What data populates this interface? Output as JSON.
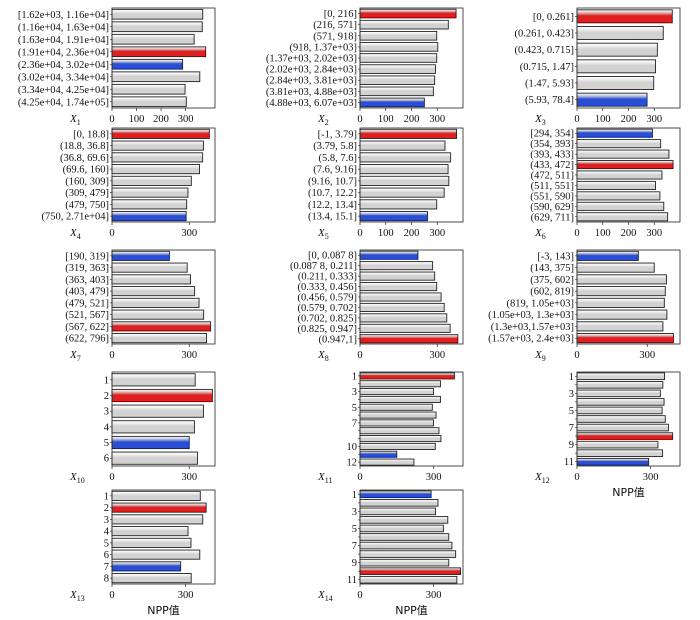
{
  "colors": {
    "highest": "#e02020",
    "lowest": "#2a4fd6",
    "normal": "#d2d2d2",
    "stroke": "#222222"
  },
  "chart_data": [
    {
      "type": "bar",
      "label": "X",
      "sub": "1",
      "categories": [
        "[1.62e+03, 1.16e+04]",
        "(1.16e+04, 1.63e+04]",
        "(1.63e+04, 1.91e+04]",
        "(1.91e+04, 2.36e+04]",
        "(2.36e+04, 3.02e+04]",
        "(3.02e+04, 3.34e+04]",
        "(3.34e+04, 4.25e+04]",
        "(4.25e+04, 1.74e+05]"
      ],
      "values": [
        370,
        368,
        335,
        382,
        288,
        358,
        298,
        303
      ],
      "highlight": [
        "normal",
        "normal",
        "normal",
        "highest",
        "lowest",
        "normal",
        "normal",
        "normal"
      ],
      "xticks": [
        0,
        100,
        200,
        300
      ],
      "xlim": [
        0,
        420
      ],
      "xlabel": ""
    },
    {
      "type": "bar",
      "label": "X",
      "sub": "2",
      "categories": [
        "[0, 216]",
        "(216, 571]",
        "(571, 918]",
        "(918, 1.37e+03]",
        "(1.37e+03, 2.02e+03]",
        "(2.02e+03, 2.84e+03]",
        "(2.84e+03, 3.81e+03]",
        "(3.81e+03, 4.88e+03]",
        "(4.88e+03, 6.07e+03]"
      ],
      "values": [
        373,
        343,
        298,
        302,
        298,
        293,
        290,
        285,
        250
      ],
      "highlight": [
        "highest",
        "normal",
        "normal",
        "normal",
        "normal",
        "normal",
        "normal",
        "normal",
        "lowest"
      ],
      "xticks": [
        0,
        100,
        200,
        300
      ],
      "xlim": [
        0,
        400
      ],
      "xlabel": ""
    },
    {
      "type": "bar",
      "label": "X",
      "sub": "3",
      "categories": [
        "[0, 0.261]",
        "(0.261, 0.423]",
        "(0.423, 0.715]",
        "(0.715, 1.47]",
        "(1.47, 5.93]",
        "(5.93, 78.4]"
      ],
      "values": [
        370,
        335,
        312,
        305,
        298,
        272
      ],
      "highlight": [
        "highest",
        "normal",
        "normal",
        "normal",
        "normal",
        "lowest"
      ],
      "xticks": [
        0,
        100,
        200,
        300
      ],
      "xlim": [
        0,
        400
      ],
      "xlabel": ""
    },
    {
      "type": "bar",
      "label": "X",
      "sub": "4",
      "categories": [
        "[0, 18.8]",
        "(18.8, 36.8]",
        "(36.8, 69.6]",
        "(69.6, 160]",
        "(160, 309]",
        "(309, 479]",
        "(479, 750]",
        "(750, 2.71e+04]"
      ],
      "values": [
        378,
        355,
        352,
        340,
        308,
        295,
        290,
        288
      ],
      "highlight": [
        "highest",
        "normal",
        "normal",
        "normal",
        "normal",
        "normal",
        "normal",
        "lowest"
      ],
      "xticks": [
        0,
        300
      ],
      "xlim": [
        0,
        400
      ],
      "xlabel": ""
    },
    {
      "type": "bar",
      "label": "X",
      "sub": "5",
      "categories": [
        "[-1, 3.79]",
        "(3.79, 5.8]",
        "(5.8, 7.6]",
        "(7.6, 9.16]",
        "(9.16, 10.7]",
        "(10.7, 12.2]",
        "(12.2, 13.4]",
        "(13.4, 15.1]"
      ],
      "values": [
        375,
        330,
        352,
        342,
        345,
        327,
        298,
        262
      ],
      "highlight": [
        "highest",
        "normal",
        "normal",
        "normal",
        "normal",
        "normal",
        "normal",
        "lowest"
      ],
      "xticks": [
        0,
        100,
        200,
        300
      ],
      "xlim": [
        0,
        400
      ],
      "xlabel": ""
    },
    {
      "type": "bar",
      "label": "X",
      "sub": "6",
      "categories": [
        "[294, 354]",
        "(354, 393]",
        "(393, 433]",
        "(433, 472]",
        "(472, 511]",
        "(511, 551]",
        "(551, 590]",
        "(590, 629]",
        "(629, 711]"
      ],
      "values": [
        293,
        325,
        357,
        373,
        330,
        305,
        322,
        337,
        352
      ],
      "highlight": [
        "lowest",
        "normal",
        "normal",
        "highest",
        "normal",
        "normal",
        "normal",
        "normal",
        "normal"
      ],
      "xticks": [
        0,
        100,
        200,
        300
      ],
      "xlim": [
        0,
        400
      ],
      "xlabel": ""
    },
    {
      "type": "bar",
      "label": "X",
      "sub": "7",
      "categories": [
        "[190, 319]",
        "(319, 363]",
        "(363, 403]",
        "(403, 479]",
        "(479, 521]",
        "(521, 567]",
        "(567, 622]",
        "(622, 796]"
      ],
      "values": [
        223,
        292,
        305,
        321,
        338,
        356,
        383,
        367
      ],
      "highlight": [
        "lowest",
        "normal",
        "normal",
        "normal",
        "normal",
        "normal",
        "highest",
        "normal"
      ],
      "xticks": [
        0,
        300
      ],
      "xlim": [
        0,
        400
      ],
      "xlabel": ""
    },
    {
      "type": "bar",
      "label": "X",
      "sub": "8",
      "categories": [
        "[0, 0.087 8]",
        "(0.087 8, 0.211]",
        "(0.211, 0.333]",
        "(0.333, 0.456]",
        "(0.456, 0.579]",
        "(0.579, 0.702]",
        "(0.702, 0.825]",
        "(0.825, 0.947]",
        "(0.947,1]"
      ],
      "values": [
        225,
        282,
        290,
        298,
        315,
        327,
        337,
        350,
        380
      ],
      "highlight": [
        "lowest",
        "normal",
        "normal",
        "normal",
        "normal",
        "normal",
        "normal",
        "normal",
        "highest"
      ],
      "xticks": [
        0,
        300
      ],
      "xlim": [
        0,
        400
      ],
      "xlabel": ""
    },
    {
      "type": "bar",
      "label": "X",
      "sub": "9",
      "categories": [
        "[-3, 143]",
        "(143, 375]",
        "(375, 602]",
        "(602, 819]",
        "(819, 1.05e+03]",
        "(1.05e+03, 1.3e+03]",
        "(1.3e+03,1.57e+03]",
        "(1.57e+03, 2.4e+03]"
      ],
      "values": [
        262,
        330,
        382,
        377,
        373,
        384,
        367,
        412
      ],
      "highlight": [
        "lowest",
        "normal",
        "normal",
        "normal",
        "normal",
        "normal",
        "normal",
        "highest"
      ],
      "xticks": [
        0,
        300
      ],
      "xlim": [
        0,
        440
      ],
      "xlabel": ""
    },
    {
      "type": "bar",
      "label": "X",
      "sub": "10",
      "categories": [
        "1",
        "2",
        "3",
        "4",
        "5",
        "6"
      ],
      "values": [
        323,
        390,
        355,
        320,
        300,
        332
      ],
      "highlight": [
        "normal",
        "highest",
        "normal",
        "normal",
        "lowest",
        "normal"
      ],
      "xticks": [
        0,
        300
      ],
      "xlim": [
        0,
        400
      ],
      "xlabel": ""
    },
    {
      "type": "bar",
      "label": "X",
      "sub": "11",
      "categories": [
        "1",
        "2",
        "3",
        "4",
        "5",
        "6",
        "7",
        "8",
        "9",
        "10",
        "11",
        "12"
      ],
      "values": [
        385,
        328,
        300,
        328,
        295,
        310,
        300,
        322,
        330,
        307,
        150,
        220
      ],
      "highlight": [
        "highest",
        "normal",
        "normal",
        "normal",
        "normal",
        "normal",
        "normal",
        "normal",
        "normal",
        "normal",
        "lowest",
        "normal"
      ],
      "tick_labels": [
        "1",
        "",
        "3",
        "",
        "5",
        "",
        "7",
        "",
        "",
        "10",
        "",
        "12"
      ],
      "xticks": [
        0,
        300
      ],
      "xlim": [
        0,
        420
      ],
      "xlabel": ""
    },
    {
      "type": "bar",
      "label": "X",
      "sub": "12",
      "categories": [
        "1",
        "2",
        "3",
        "4",
        "5",
        "6",
        "7",
        "8",
        "9",
        "10",
        "11"
      ],
      "values": [
        357,
        350,
        340,
        355,
        347,
        360,
        373,
        390,
        330,
        349,
        292
      ],
      "highlight": [
        "normal",
        "normal",
        "normal",
        "normal",
        "normal",
        "normal",
        "normal",
        "highest",
        "normal",
        "normal",
        "lowest"
      ],
      "tick_labels": [
        "1",
        "",
        "3",
        "",
        "5",
        "",
        "7",
        "",
        "9",
        "",
        "11"
      ],
      "xticks": [
        0,
        300
      ],
      "xlim": [
        0,
        420
      ],
      "xlabel": "NPP值"
    },
    {
      "type": "bar",
      "label": "X",
      "sub": "13",
      "categories": [
        "1",
        "2",
        "3",
        "4",
        "5",
        "6",
        "7",
        "8"
      ],
      "values": [
        360,
        384,
        370,
        310,
        322,
        358,
        280,
        323
      ],
      "highlight": [
        "normal",
        "highest",
        "normal",
        "normal",
        "normal",
        "normal",
        "lowest",
        "normal"
      ],
      "xticks": [
        0,
        300
      ],
      "xlim": [
        0,
        420
      ],
      "xlabel": "NPP值"
    },
    {
      "type": "bar",
      "label": "X",
      "sub": "14",
      "categories": [
        "1",
        "2",
        "3",
        "4",
        "5",
        "6",
        "7",
        "8",
        "9",
        "10",
        "11"
      ],
      "values": [
        290,
        318,
        308,
        358,
        340,
        362,
        375,
        390,
        362,
        410,
        395
      ],
      "highlight": [
        "lowest",
        "normal",
        "normal",
        "normal",
        "normal",
        "normal",
        "normal",
        "normal",
        "normal",
        "highest",
        "normal"
      ],
      "tick_labels": [
        "1",
        "",
        "3",
        "",
        "5",
        "",
        "7",
        "",
        "9",
        "",
        "11"
      ],
      "xticks": [
        0,
        300
      ],
      "xlim": [
        0,
        420
      ],
      "xlabel": "NPP值"
    }
  ]
}
